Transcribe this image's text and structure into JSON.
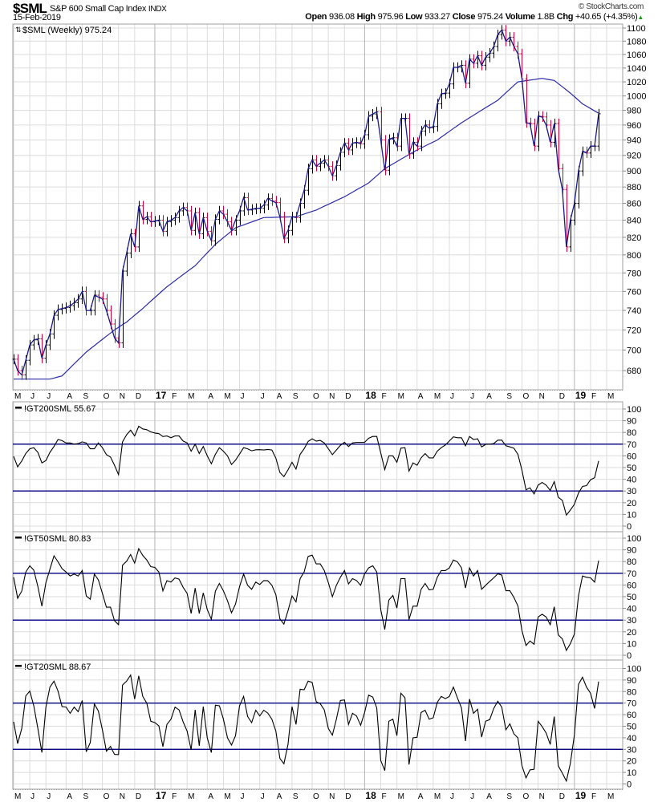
{
  "header": {
    "symbol": "$SML",
    "name": "S&P 600 Small Cap Index",
    "exchange": "INDX",
    "date": "15-Feb-2019",
    "copyright": "© StockCharts.com",
    "quote": {
      "open_label": "Open",
      "open": "936.08",
      "high_label": "High",
      "high": "975.96",
      "low_label": "Low",
      "low": "933.27",
      "close_label": "Close",
      "close": "975.24",
      "volume_label": "Volume",
      "volume": "1.8B",
      "chg_label": "Chg",
      "chg": "+40.65 (+4.35%)"
    }
  },
  "colors": {
    "up_bar": "#000000",
    "down_bar": "#d4003a",
    "close_line": "#1a1a8c",
    "moving_average": "#2b2ba6",
    "reference_line": "#000080",
    "indicator_line": "#000000",
    "grid": "#dcdcdc",
    "year_grid": "#b4b4b4",
    "change_up": "#1a9a1a"
  },
  "time_axis": {
    "ticks": [
      {
        "label": "M",
        "date": "2016-05-06"
      },
      {
        "label": "J",
        "date": "2016-06-03"
      },
      {
        "label": "J",
        "date": "2016-07-01"
      },
      {
        "label": "A",
        "date": "2016-08-05"
      },
      {
        "label": "S",
        "date": "2016-09-02"
      },
      {
        "label": "O",
        "date": "2016-10-07"
      },
      {
        "label": "N",
        "date": "2016-11-04"
      },
      {
        "label": "D",
        "date": "2016-12-02"
      },
      {
        "label": "17",
        "date": "2017-01-06",
        "year": true
      },
      {
        "label": "F",
        "date": "2017-02-03"
      },
      {
        "label": "M",
        "date": "2017-03-03"
      },
      {
        "label": "A",
        "date": "2017-04-07"
      },
      {
        "label": "M",
        "date": "2017-05-05"
      },
      {
        "label": "J",
        "date": "2017-06-02"
      },
      {
        "label": "J",
        "date": "2017-07-07"
      },
      {
        "label": "A",
        "date": "2017-08-04"
      },
      {
        "label": "S",
        "date": "2017-09-01"
      },
      {
        "label": "O",
        "date": "2017-10-06"
      },
      {
        "label": "N",
        "date": "2017-11-03"
      },
      {
        "label": "D",
        "date": "2017-12-01"
      },
      {
        "label": "18",
        "date": "2018-01-05",
        "year": true
      },
      {
        "label": "F",
        "date": "2018-02-02"
      },
      {
        "label": "M",
        "date": "2018-03-02"
      },
      {
        "label": "A",
        "date": "2018-04-06"
      },
      {
        "label": "M",
        "date": "2018-05-04"
      },
      {
        "label": "J",
        "date": "2018-06-01"
      },
      {
        "label": "J",
        "date": "2018-07-06"
      },
      {
        "label": "A",
        "date": "2018-08-03"
      },
      {
        "label": "S",
        "date": "2018-09-07"
      },
      {
        "label": "O",
        "date": "2018-10-05"
      },
      {
        "label": "N",
        "date": "2018-11-02"
      },
      {
        "label": "D",
        "date": "2018-12-07"
      },
      {
        "label": "19",
        "date": "2019-01-04",
        "year": true
      },
      {
        "label": "F",
        "date": "2019-02-01"
      },
      {
        "label": "M",
        "date": "2019-03-01"
      }
    ],
    "dates": [
      "2016-05-06",
      "2016-05-13",
      "2016-05-20",
      "2016-05-27",
      "2016-06-03",
      "2016-06-10",
      "2016-06-17",
      "2016-06-24",
      "2016-07-01",
      "2016-07-08",
      "2016-07-15",
      "2016-07-22",
      "2016-07-29",
      "2016-08-05",
      "2016-08-12",
      "2016-08-19",
      "2016-08-26",
      "2016-09-02",
      "2016-09-09",
      "2016-09-16",
      "2016-09-23",
      "2016-09-30",
      "2016-10-07",
      "2016-10-14",
      "2016-10-21",
      "2016-10-28",
      "2016-11-04",
      "2016-11-11",
      "2016-11-18",
      "2016-11-25",
      "2016-12-02",
      "2016-12-09",
      "2016-12-16",
      "2016-12-23",
      "2016-12-30",
      "2017-01-06",
      "2017-01-13",
      "2017-01-20",
      "2017-01-27",
      "2017-02-03",
      "2017-02-10",
      "2017-02-17",
      "2017-02-24",
      "2017-03-03",
      "2017-03-10",
      "2017-03-17",
      "2017-03-24",
      "2017-03-31",
      "2017-04-07",
      "2017-04-14",
      "2017-04-21",
      "2017-04-28",
      "2017-05-05",
      "2017-05-12",
      "2017-05-19",
      "2017-05-26",
      "2017-06-02",
      "2017-06-09",
      "2017-06-16",
      "2017-06-23",
      "2017-06-30",
      "2017-07-07",
      "2017-07-14",
      "2017-07-21",
      "2017-07-28",
      "2017-08-04",
      "2017-08-11",
      "2017-08-18",
      "2017-08-25",
      "2017-09-01",
      "2017-09-08",
      "2017-09-15",
      "2017-09-22",
      "2017-09-29",
      "2017-10-06",
      "2017-10-13",
      "2017-10-20",
      "2017-10-27",
      "2017-11-03",
      "2017-11-10",
      "2017-11-17",
      "2017-11-24",
      "2017-12-01",
      "2017-12-08",
      "2017-12-15",
      "2017-12-22",
      "2017-12-29",
      "2018-01-05",
      "2018-01-12",
      "2018-01-19",
      "2018-01-26",
      "2018-02-02",
      "2018-02-09",
      "2018-02-16",
      "2018-02-23",
      "2018-03-02",
      "2018-03-09",
      "2018-03-16",
      "2018-03-23",
      "2018-03-30",
      "2018-04-06",
      "2018-04-13",
      "2018-04-20",
      "2018-04-27",
      "2018-05-04",
      "2018-05-11",
      "2018-05-18",
      "2018-05-25",
      "2018-06-01",
      "2018-06-08",
      "2018-06-15",
      "2018-06-22",
      "2018-06-29",
      "2018-07-06",
      "2018-07-13",
      "2018-07-20",
      "2018-07-27",
      "2018-08-03",
      "2018-08-10",
      "2018-08-17",
      "2018-08-24",
      "2018-08-31",
      "2018-09-07",
      "2018-09-14",
      "2018-09-21",
      "2018-09-28",
      "2018-10-05",
      "2018-10-12",
      "2018-10-19",
      "2018-10-26",
      "2018-11-02",
      "2018-11-09",
      "2018-11-16",
      "2018-11-23",
      "2018-11-30",
      "2018-12-07",
      "2018-12-14",
      "2018-12-21",
      "2018-12-28",
      "2019-01-04",
      "2019-01-11",
      "2019-01-18",
      "2019-01-25",
      "2019-02-01",
      "2019-02-08",
      "2019-02-15"
    ]
  },
  "chart_data": [
    {
      "type": "ohlc-line",
      "label": "$SML (Weekly) 975.24",
      "scale": "log",
      "ylim": [
        665,
        1105
      ],
      "yticks": [
        680,
        700,
        720,
        740,
        760,
        780,
        800,
        820,
        840,
        860,
        880,
        900,
        920,
        940,
        960,
        980,
        1000,
        1020,
        1040,
        1060,
        1080,
        1100
      ],
      "grid": true,
      "close": [
        691,
        680,
        676,
        690,
        705,
        710,
        711,
        692,
        705,
        716,
        735,
        741,
        742,
        743,
        745,
        748,
        752,
        760,
        740,
        740,
        756,
        754,
        752,
        740,
        726,
        712,
        707,
        782,
        802,
        824,
        809,
        857,
        841,
        844,
        838,
        839,
        840,
        827,
        838,
        840,
        843,
        851,
        855,
        851,
        828,
        849,
        824,
        843,
        827,
        816,
        841,
        851,
        847,
        838,
        828,
        840,
        851,
        867,
        852,
        853,
        854,
        854,
        858,
        866,
        863,
        861,
        844,
        819,
        828,
        844,
        843,
        860,
        876,
        903,
        914,
        906,
        910,
        914,
        906,
        894,
        907,
        924,
        936,
        927,
        936,
        937,
        935,
        947,
        972,
        975,
        978,
        940,
        901,
        941,
        943,
        932,
        969,
        969,
        922,
        937,
        932,
        952,
        960,
        956,
        958,
        989,
        1003,
        1004,
        1017,
        1041,
        1041,
        1044,
        1018,
        1053,
        1047,
        1058,
        1044,
        1056,
        1062,
        1072,
        1090,
        1097,
        1080,
        1086,
        1072,
        1061,
        1024,
        963,
        962,
        932,
        972,
        971,
        960,
        937,
        962,
        903,
        877,
        809,
        840,
        860,
        900,
        925,
        923,
        932,
        932,
        975.24
      ],
      "moving_average": [
        [
          "2016-05-06",
          672
        ],
        [
          "2016-07-08",
          672
        ],
        [
          "2016-07-29",
          675
        ],
        [
          "2016-09-09",
          698
        ],
        [
          "2016-10-28",
          720
        ],
        [
          "2016-11-18",
          728
        ],
        [
          "2016-12-16",
          742
        ],
        [
          "2017-01-27",
          765
        ],
        [
          "2017-03-17",
          788
        ],
        [
          "2017-04-21",
          812
        ],
        [
          "2017-05-26",
          831
        ],
        [
          "2017-07-14",
          843
        ],
        [
          "2017-09-08",
          844
        ],
        [
          "2017-10-13",
          852
        ],
        [
          "2017-12-01",
          868
        ],
        [
          "2018-01-12",
          885
        ],
        [
          "2018-02-09",
          903
        ],
        [
          "2018-04-06",
          927
        ],
        [
          "2018-05-11",
          940
        ],
        [
          "2018-06-22",
          963
        ],
        [
          "2018-08-24",
          994
        ],
        [
          "2018-09-28",
          1020
        ],
        [
          "2018-11-09",
          1025
        ],
        [
          "2018-11-30",
          1022
        ],
        [
          "2018-12-28",
          1004
        ],
        [
          "2019-01-18",
          989
        ],
        [
          "2019-02-15",
          976
        ]
      ]
    },
    {
      "type": "line",
      "label": "!GT200SML 55.67",
      "ylim": [
        0,
        100
      ],
      "yticks": [
        0,
        10,
        20,
        30,
        40,
        50,
        60,
        70,
        80,
        90,
        100
      ],
      "reference_lines": [
        30,
        70
      ],
      "grid": true,
      "values": [
        59.5,
        50.6,
        55.6,
        62,
        66,
        67,
        63,
        54,
        56,
        63,
        68,
        74,
        73,
        71,
        71,
        70,
        70.5,
        72,
        71,
        66,
        66,
        71,
        67,
        61,
        59,
        52,
        44,
        72,
        78,
        82,
        77,
        85.3,
        83,
        82.3,
        80.5,
        79.5,
        79,
        76.5,
        77,
        75.5,
        77,
        77,
        72.7,
        71,
        64,
        70,
        62,
        68,
        60,
        53.3,
        61.3,
        67,
        64,
        60,
        52.6,
        56.3,
        61.5,
        67,
        66,
        64.3,
        65.2,
        65.3,
        65,
        65.5,
        65,
        58,
        45.8,
        42.3,
        48,
        54.5,
        48.7,
        61.3,
        66,
        72.3,
        74.5,
        72.5,
        73.2,
        71,
        66,
        61,
        65,
        69,
        71.6,
        68,
        71,
        71.6,
        71.6,
        71.6,
        75,
        76.6,
        76.6,
        62.5,
        48.3,
        60,
        60,
        54.5,
        66.6,
        67,
        47,
        54,
        52,
        58.3,
        62,
        58.3,
        58.3,
        64,
        67,
        69.3,
        72.7,
        76.2,
        75.5,
        75.5,
        68.6,
        76.6,
        74,
        74.6,
        67.7,
        69.8,
        70,
        70.5,
        73.4,
        73.4,
        68.6,
        67.7,
        66.6,
        61.3,
        47.6,
        31,
        32.7,
        27.5,
        35,
        37.3,
        35,
        30.5,
        38,
        24.7,
        22,
        9.4,
        13.7,
        18.6,
        28.2,
        33.9,
        34.6,
        39.6,
        41.4,
        55.67
      ]
    },
    {
      "type": "line",
      "label": "!GT50SML 80.83",
      "ylim": [
        0,
        100
      ],
      "yticks": [
        0,
        10,
        20,
        30,
        40,
        50,
        60,
        70,
        80,
        90,
        100
      ],
      "reference_lines": [
        30,
        70
      ],
      "grid": true,
      "values": [
        66.6,
        48.7,
        54.7,
        71,
        76.4,
        72.7,
        58.6,
        41.9,
        62,
        73.4,
        84.9,
        79.8,
        74,
        71,
        67.7,
        69.3,
        67.7,
        72.3,
        50.6,
        47.8,
        69.3,
        64.3,
        52.9,
        41,
        41,
        29.5,
        26.1,
        76.9,
        80.3,
        86,
        78.7,
        91,
        85.3,
        81.4,
        75.7,
        75,
        71,
        55,
        63.6,
        62.5,
        66,
        65,
        58,
        52.9,
        35.7,
        57.4,
        35.7,
        53.3,
        39,
        30.7,
        54.7,
        61.3,
        55,
        46.5,
        36.2,
        43.7,
        58.6,
        69.3,
        59.7,
        56.3,
        62.5,
        60.4,
        63.8,
        63.6,
        59.7,
        51.7,
        31.1,
        26.6,
        38,
        50.6,
        45.5,
        65.4,
        71.1,
        84.4,
        85.5,
        78,
        78,
        72.3,
        62,
        50,
        59.7,
        66.6,
        72.3,
        60.9,
        65.4,
        63.8,
        59.7,
        69.5,
        74.6,
        76.4,
        71.1,
        39,
        22,
        47.1,
        51,
        40.3,
        65.4,
        65.4,
        30.5,
        41.9,
        41.9,
        56.3,
        61.3,
        55.8,
        56.3,
        66.6,
        72.3,
        72.3,
        74.6,
        81.4,
        79.8,
        74.6,
        57.4,
        74.6,
        67.7,
        72.3,
        56.3,
        59.7,
        63.1,
        66.1,
        69.5,
        68.4,
        55.1,
        55.1,
        49.4,
        42.1,
        20.9,
        8.3,
        12.2,
        9.4,
        32.7,
        35,
        32.7,
        26.1,
        41.4,
        17.4,
        14,
        4.2,
        9.9,
        18.1,
        50.6,
        67.7,
        66.6,
        66.1,
        62.5,
        80.83
      ]
    },
    {
      "type": "line",
      "label": "!GT20SML 88.67",
      "ylim": [
        0,
        100
      ],
      "yticks": [
        0,
        10,
        20,
        30,
        40,
        50,
        60,
        70,
        80,
        90,
        100
      ],
      "reference_lines": [
        30,
        70
      ],
      "grid": true,
      "values": [
        53.8,
        34.9,
        48,
        76.2,
        80.4,
        67.7,
        48,
        27.2,
        66.5,
        83.9,
        89,
        80.4,
        67,
        66.5,
        61.2,
        66.5,
        62.6,
        72.3,
        27.9,
        35.8,
        69.3,
        63.1,
        46.9,
        28.4,
        32.5,
        25.6,
        25.4,
        85.7,
        89,
        94.3,
        73.5,
        93.6,
        75.8,
        70,
        54.3,
        53.1,
        50.3,
        32.3,
        51.5,
        56.1,
        66.5,
        64.2,
        53.8,
        45.7,
        29.5,
        64.2,
        33,
        67,
        39.9,
        27.2,
        68.2,
        67.7,
        56.1,
        39.9,
        33.7,
        41.8,
        67.7,
        75.8,
        58.4,
        53.1,
        63.8,
        58.9,
        63.8,
        61.4,
        56.1,
        45.7,
        22.1,
        17.5,
        34.2,
        67,
        51.5,
        82,
        81.6,
        89,
        88,
        71.2,
        69.5,
        64.2,
        48,
        42.3,
        56.1,
        72.3,
        72.8,
        51.5,
        61.2,
        58.9,
        50.8,
        61.9,
        76.9,
        75.3,
        65.8,
        20.3,
        11.6,
        54.3,
        56.1,
        41.8,
        78.6,
        74.6,
        16.8,
        39.9,
        40.4,
        61.9,
        63.8,
        56.1,
        57.3,
        70.7,
        75.8,
        73.9,
        75.8,
        83.9,
        74.6,
        65.8,
        37.2,
        73.5,
        61.2,
        64.7,
        40.6,
        54.3,
        55.7,
        65.4,
        71.6,
        66.5,
        46.9,
        52,
        43.4,
        39.9,
        15.7,
        5.3,
        12.2,
        12.7,
        54.3,
        49.7,
        44.1,
        34.2,
        58.4,
        15.7,
        9.4,
        2.5,
        18,
        42.3,
        86.2,
        92.4,
        83.9,
        78.6,
        65.4,
        88.67
      ]
    }
  ]
}
